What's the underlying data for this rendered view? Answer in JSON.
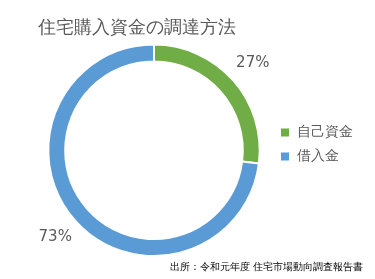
{
  "chart_data": {
    "type": "doughnut",
    "title": "住宅購入資金の調達方法",
    "categories": [
      "自己資金",
      "借入金"
    ],
    "values": [
      27,
      73
    ],
    "value_labels": [
      "27%",
      "73%"
    ],
    "colors": [
      "#70ad47",
      "#5b9bd5"
    ],
    "data_labels": true,
    "legend": "right",
    "source": "出所：令和元年度 住宅市場動向調査報告書"
  }
}
